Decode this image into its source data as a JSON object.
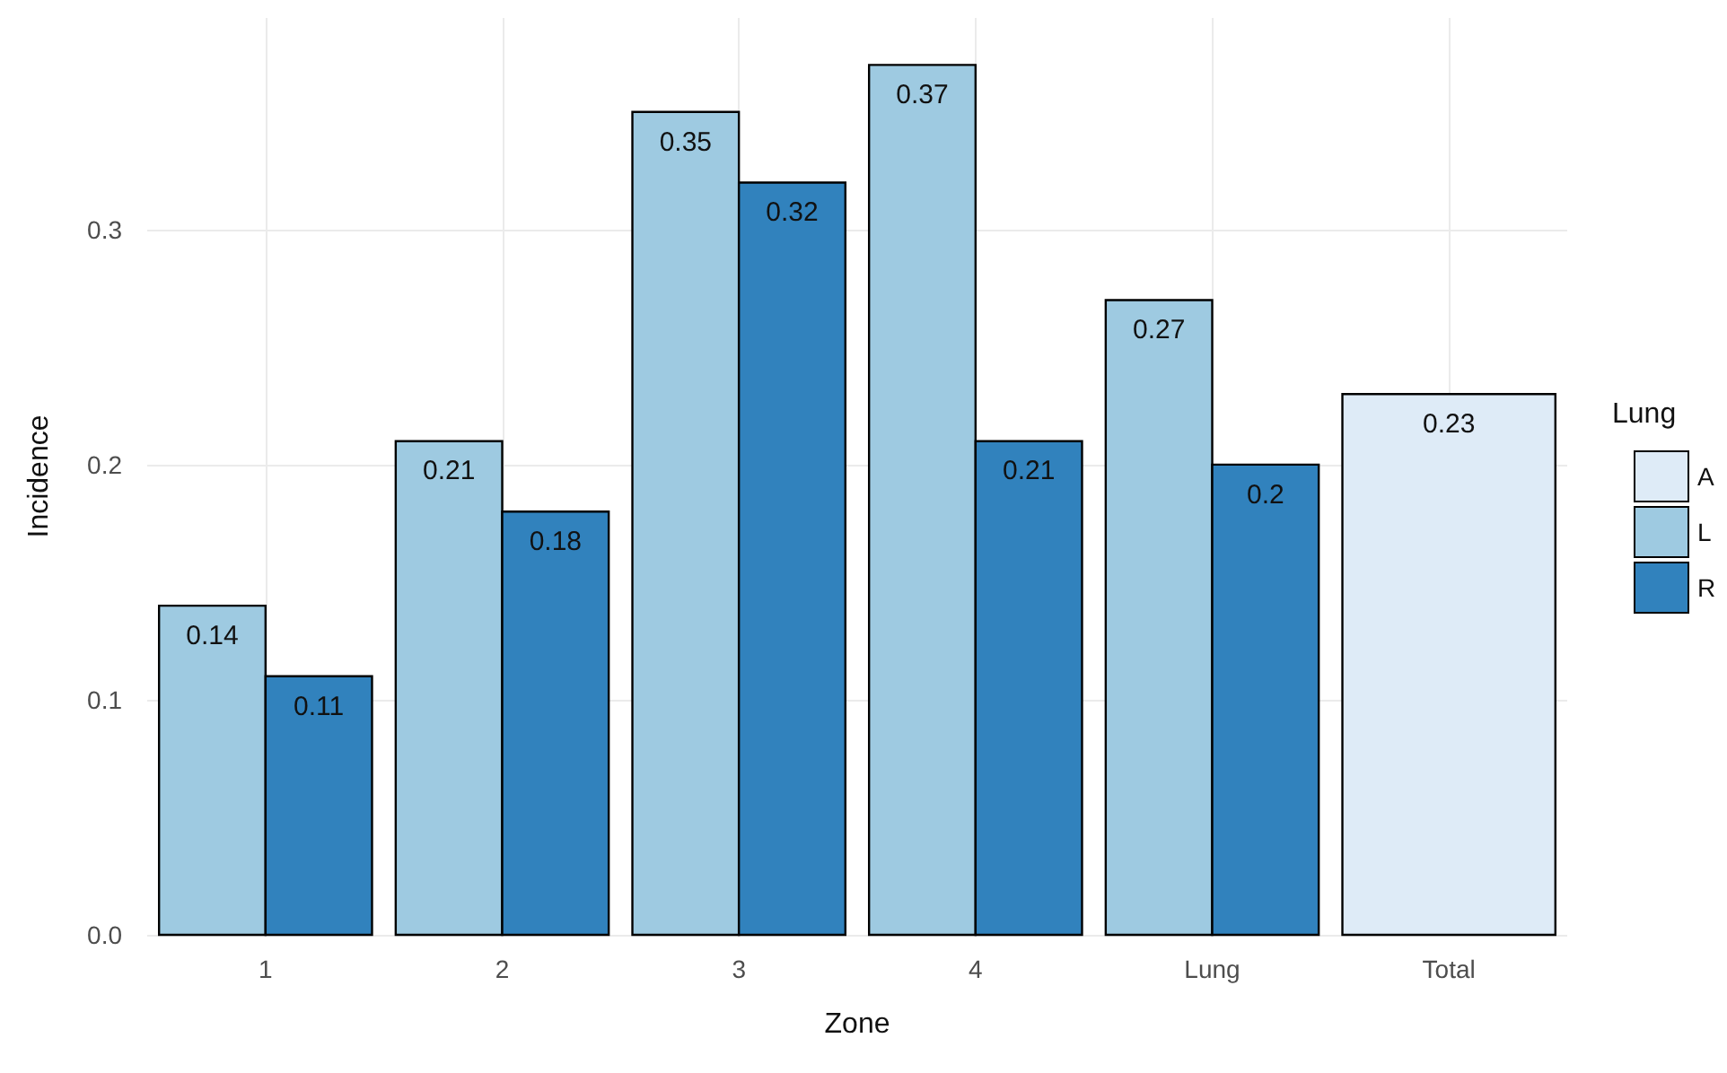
{
  "chart_data": {
    "type": "bar",
    "xlabel": "Zone",
    "ylabel": "Incidence",
    "legend_title": "Lung",
    "categories": [
      "1",
      "2",
      "3",
      "4",
      "Lung",
      "Total"
    ],
    "series": [
      {
        "name": "A",
        "color": "#deebf7",
        "values": [
          null,
          null,
          null,
          null,
          null,
          0.23
        ]
      },
      {
        "name": "L",
        "color": "#9ecae1",
        "values": [
          0.14,
          0.21,
          0.35,
          0.37,
          0.27,
          null
        ]
      },
      {
        "name": "R",
        "color": "#3182bd",
        "values": [
          0.11,
          0.18,
          0.32,
          0.21,
          0.2,
          null
        ]
      }
    ],
    "ylim": [
      0,
      0.39
    ],
    "yticks": [
      {
        "value": 0,
        "label": "0.0"
      },
      0.1,
      0.2,
      0.3
    ],
    "grid": true,
    "legend": "right",
    "data_labels": true
  }
}
